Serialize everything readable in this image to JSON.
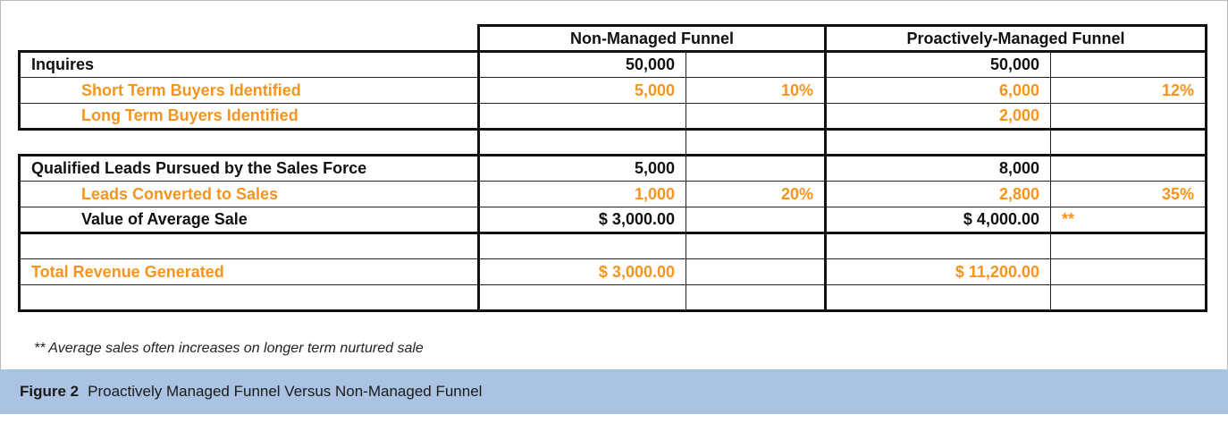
{
  "header": {
    "col_nonmanaged": "Non-Managed Funnel",
    "col_managed": "Proactively-Managed Funnel"
  },
  "rows": [
    {
      "label": "Inquires",
      "nm_value": "50,000",
      "nm_pct": "",
      "pm_value": "50,000",
      "pm_pct": ""
    },
    {
      "label": "Short Term Buyers Identified",
      "nm_value": "5,000",
      "nm_pct": "10%",
      "pm_value": "6,000",
      "pm_pct": "12%"
    },
    {
      "label": "Long Term Buyers Identified",
      "nm_value": "",
      "nm_pct": "",
      "pm_value": "2,000",
      "pm_pct": ""
    },
    {
      "label": "Qualified Leads Pursued by the Sales Force",
      "nm_value": "5,000",
      "nm_pct": "",
      "pm_value": "8,000",
      "pm_pct": ""
    },
    {
      "label": "Leads Converted to Sales",
      "nm_value": "1,000",
      "nm_pct": "20%",
      "pm_value": "2,800",
      "pm_pct": "35%"
    },
    {
      "label": "Value of Average Sale",
      "nm_value": "$ 3,000.00",
      "nm_pct": "",
      "pm_value": "$ 4,000.00",
      "pm_pct": "**"
    },
    {
      "label": "Total Revenue Generated",
      "nm_value": "$ 3,000.00",
      "nm_pct": "",
      "pm_value": "$ 11,200.00",
      "pm_pct": ""
    }
  ],
  "footnote": "** Average sales often increases on longer term nurtured sale",
  "caption": {
    "label": "Figure 2",
    "text": "Proactively Managed Funnel Versus Non-Managed Funnel"
  },
  "colors": {
    "accent_orange": "#f7941d",
    "caption_bg": "#aac3e2",
    "text": "#111111"
  }
}
